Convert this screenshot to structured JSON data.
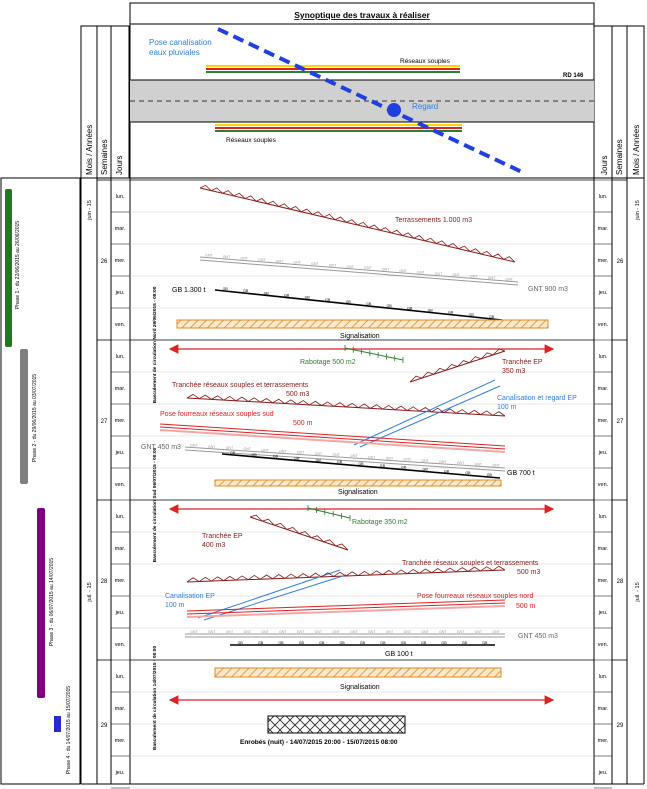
{
  "title": "Synoptique des travaux à réaliser",
  "schematic": {
    "pluvial_label_1": "Pose canalisation",
    "pluvial_label_2": "eaux pluviales",
    "reseaux_top": "Réseaux souples",
    "reseaux_bottom": "Réseaux souples",
    "road": "RD 146",
    "regard": "Regard"
  },
  "headers": {
    "mois_annees": "Mois / Années",
    "semaines": "Semaines",
    "jours": "Jours"
  },
  "days": [
    "lun.",
    "mar.",
    "mer.",
    "jeu.",
    "ven.",
    "lun.",
    "mar.",
    "mer.",
    "jeu.",
    "ven.",
    "lun.",
    "mar.",
    "mer.",
    "jeu.",
    "ven.",
    "lun.",
    "mar.",
    "mer.",
    "jeu."
  ],
  "weeks": [
    "26",
    "27",
    "28",
    "29"
  ],
  "months": [
    "juin - 15",
    "juil. - 15"
  ],
  "phases": [
    {
      "label": "Phase 1 - du 22/06/2015 au 26/06/2015",
      "color": "#1f7a1f"
    },
    {
      "label": "Phase 2 - du 29/06/2015 au 03/07/2015",
      "color": "#808080"
    },
    {
      "label": "Phase 3 - du 06/07/2015 au 14/07/2015",
      "color": "#800080"
    },
    {
      "label": "Phase 4 - du 14/07/2015 au 15/07/2015",
      "color": "#2a2ad4"
    }
  ],
  "basculements": [
    "Basculement de circulation Nord 29/06/2015 - 08:00",
    "Basculement de circulation Sud 06/07/2015 - 08:00",
    "Basculement de circulation 14/07/2015 - 08:00"
  ],
  "tasks": {
    "terrassements": "Terrassements 1.000 m3",
    "gnt_900": "GNT 900 m3",
    "gb_1300": "GB 1.300 t",
    "signalisation_1": "Signalisation",
    "rabotage_500": "Rabotage 500 m2",
    "tranchee_ep_350": "Tranchée EP 350 m3",
    "tranchee_reseaux_500": "Tranchée réseaux souples et terrassements 500 m3",
    "canalisation_regard": "Canalisation et regard EP 100 m",
    "pose_fourreaux_sud": "Pose fourreaux réseaux souples sud 500 m",
    "gnt_450_a": "GNT 450 m3",
    "gb_700": "GB 700 t",
    "signalisation_2": "Signalisation",
    "rabotage_350": "Rabotage 350 m2",
    "tranchee_ep_400": "Tranchée EP 400 m3",
    "tranchee_reseaux_500_b": "Tranchée réseaux souples et terrassements 500 m3",
    "canalisation_ep": "Canalisation EP 100 m",
    "pose_fourreaux_nord": "Pose fourreaux réseaux souples nord 500 m",
    "gnt_450_b": "GNT 450 m3",
    "gb_100": "GB 100 t",
    "signalisation_3": "Signalisation",
    "enrobes": "Enrobés (nuit) - 14/07/2015 20:00 - 15/07/2015 08:00"
  },
  "colors": {
    "dark_red": "#8b1a1a",
    "red": "#dd2222",
    "blue": "#1f4fe0",
    "light_blue": "#2f7fe0",
    "green": "#2e7d32",
    "orange": "#e08a1e",
    "gray": "#999999"
  }
}
